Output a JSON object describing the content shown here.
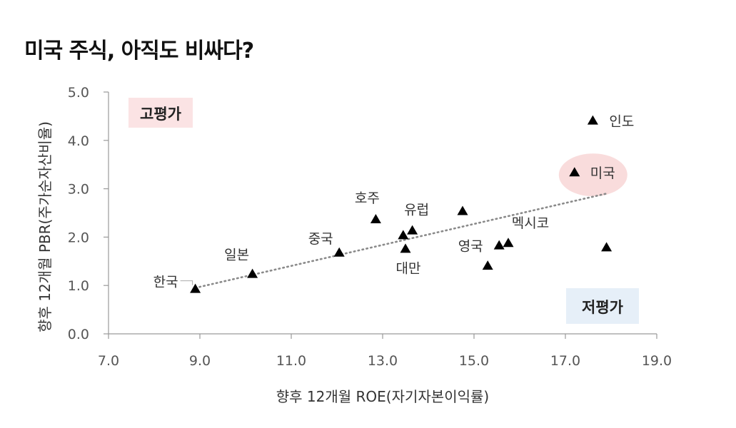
{
  "title": "미국 주식, 아직도 비싸다?",
  "chart_data": {
    "type": "scatter",
    "title": "미국 주식, 아직도 비싸다?",
    "xlabel": "향후 12개월 ROE(자기자본이익률)",
    "ylabel": "향후 12개월 PBR(주가순자산비율)",
    "xlim": [
      7.0,
      19.0
    ],
    "ylim": [
      0.0,
      5.0
    ],
    "x_ticks": [
      "7.0",
      "9.0",
      "11.0",
      "13.0",
      "15.0",
      "17.0",
      "19.0"
    ],
    "y_ticks": [
      "0.0",
      "1.0",
      "2.0",
      "3.0",
      "4.0",
      "5.0"
    ],
    "grid": false,
    "trendline": {
      "style": "dotted",
      "x": [
        8.9,
        17.9
      ],
      "y": [
        0.95,
        2.9
      ]
    },
    "zones": [
      {
        "label": "고평가",
        "color": "#fbe3e4"
      },
      {
        "label": "저평가",
        "color": "#e6eff8"
      }
    ],
    "highlight_color": "#f9dcdc",
    "points": [
      {
        "label": "한국",
        "x": 8.9,
        "y": 0.92
      },
      {
        "label": "일본",
        "x": 10.15,
        "y": 1.23
      },
      {
        "label": "중국",
        "x": 12.05,
        "y": 1.67
      },
      {
        "label": "호주",
        "x": 12.85,
        "y": 2.36
      },
      {
        "label": "",
        "x": 13.45,
        "y": 2.03
      },
      {
        "label": "유럽",
        "x": 13.65,
        "y": 2.13
      },
      {
        "label": "대만",
        "x": 13.5,
        "y": 1.75
      },
      {
        "label": "",
        "x": 14.75,
        "y": 2.53
      },
      {
        "label": "",
        "x": 15.3,
        "y": 1.4
      },
      {
        "label": "영국",
        "x": 15.55,
        "y": 1.82
      },
      {
        "label": "멕시코",
        "x": 15.75,
        "y": 1.87
      },
      {
        "label": "미국",
        "x": 17.2,
        "y": 3.33,
        "highlight": true
      },
      {
        "label": "인도",
        "x": 17.6,
        "y": 4.4
      },
      {
        "label": "",
        "x": 17.9,
        "y": 1.78
      }
    ]
  }
}
